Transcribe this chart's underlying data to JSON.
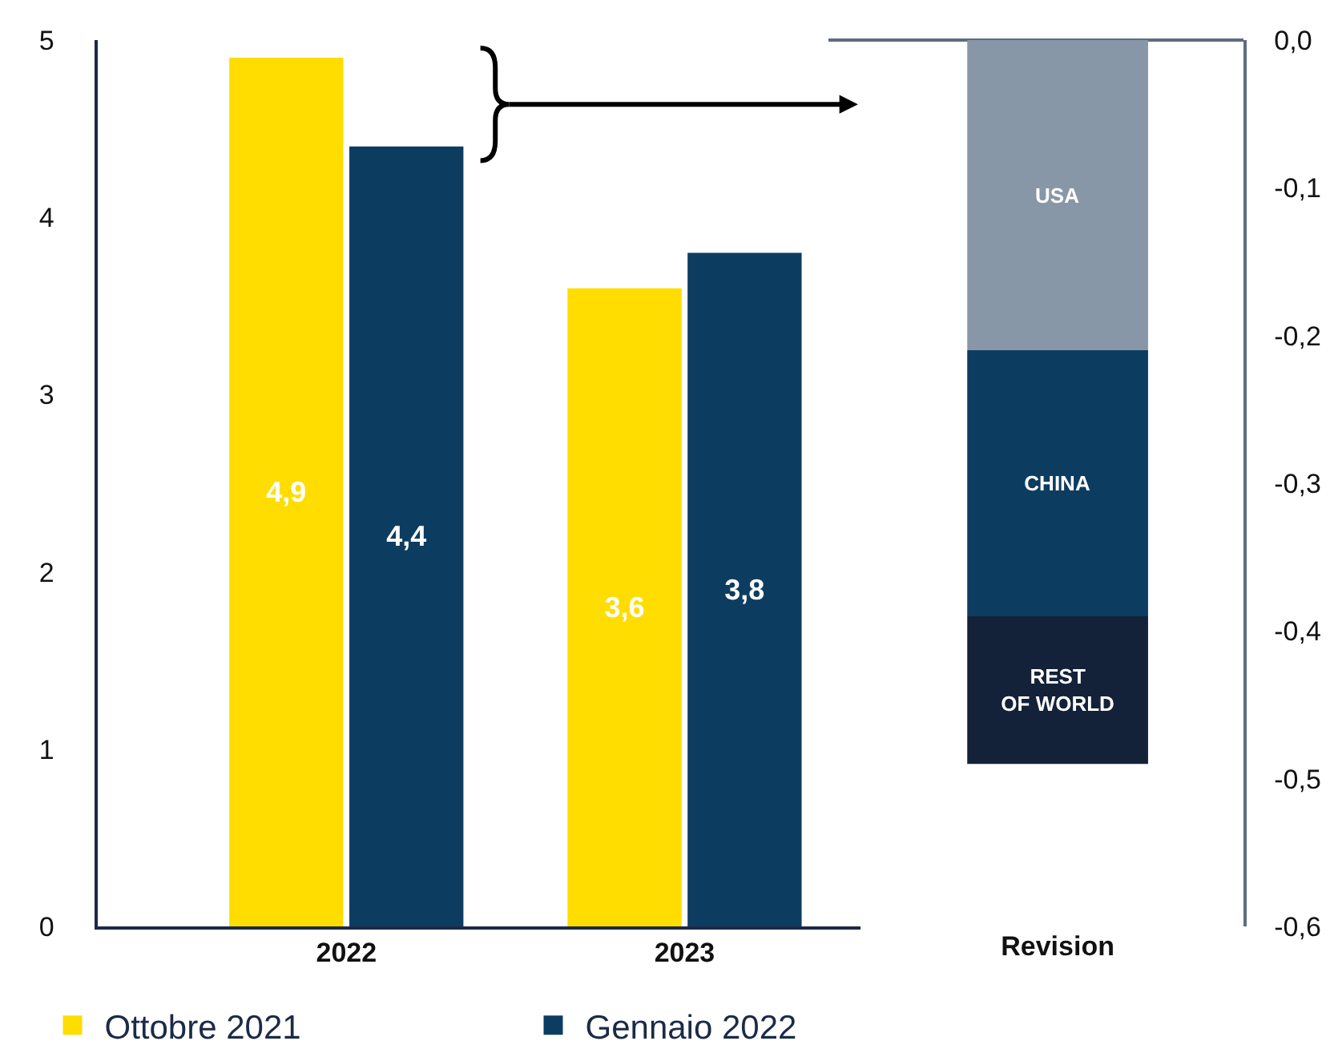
{
  "chart_data": [
    {
      "type": "bar",
      "categories": [
        "2022",
        "2023"
      ],
      "series": [
        {
          "name": "Ottobre 2021",
          "color": "#ffdd00",
          "values": [
            4.9,
            3.6
          ],
          "value_labels": [
            "4,9",
            "3,6"
          ]
        },
        {
          "name": "Gennaio 2022",
          "color": "#0d3c61",
          "values": [
            4.4,
            3.8
          ],
          "value_labels": [
            "4,4",
            "3,8"
          ]
        }
      ],
      "ylim": [
        0,
        5
      ],
      "yticks": [
        0,
        1,
        2,
        3,
        4,
        5
      ],
      "grid": false,
      "legend": "bottom"
    },
    {
      "type": "bar",
      "stacked": true,
      "categories": [
        "Revision"
      ],
      "series": [
        {
          "name": "USA",
          "color": "#8797a8",
          "values": [
            -0.21
          ]
        },
        {
          "name": "CHINA",
          "color": "#0d3c61",
          "values": [
            -0.18
          ]
        },
        {
          "name": "REST\nOF WORLD",
          "color": "#132238",
          "values": [
            -0.1
          ]
        }
      ],
      "ylim": [
        -0.6,
        0
      ],
      "yticks": [
        {
          "value": 0,
          "label": "0,0"
        },
        {
          "value": -0.1,
          "label": "-0,1"
        },
        {
          "value": -0.2,
          "label": "-0,2"
        },
        {
          "value": -0.3,
          "label": "-0,3"
        },
        {
          "value": -0.4,
          "label": "-0,4"
        },
        {
          "value": -0.5,
          "label": "-0,5"
        },
        {
          "value": -0.6,
          "label": "-0,6"
        }
      ],
      "grid": false,
      "legend": false
    }
  ]
}
